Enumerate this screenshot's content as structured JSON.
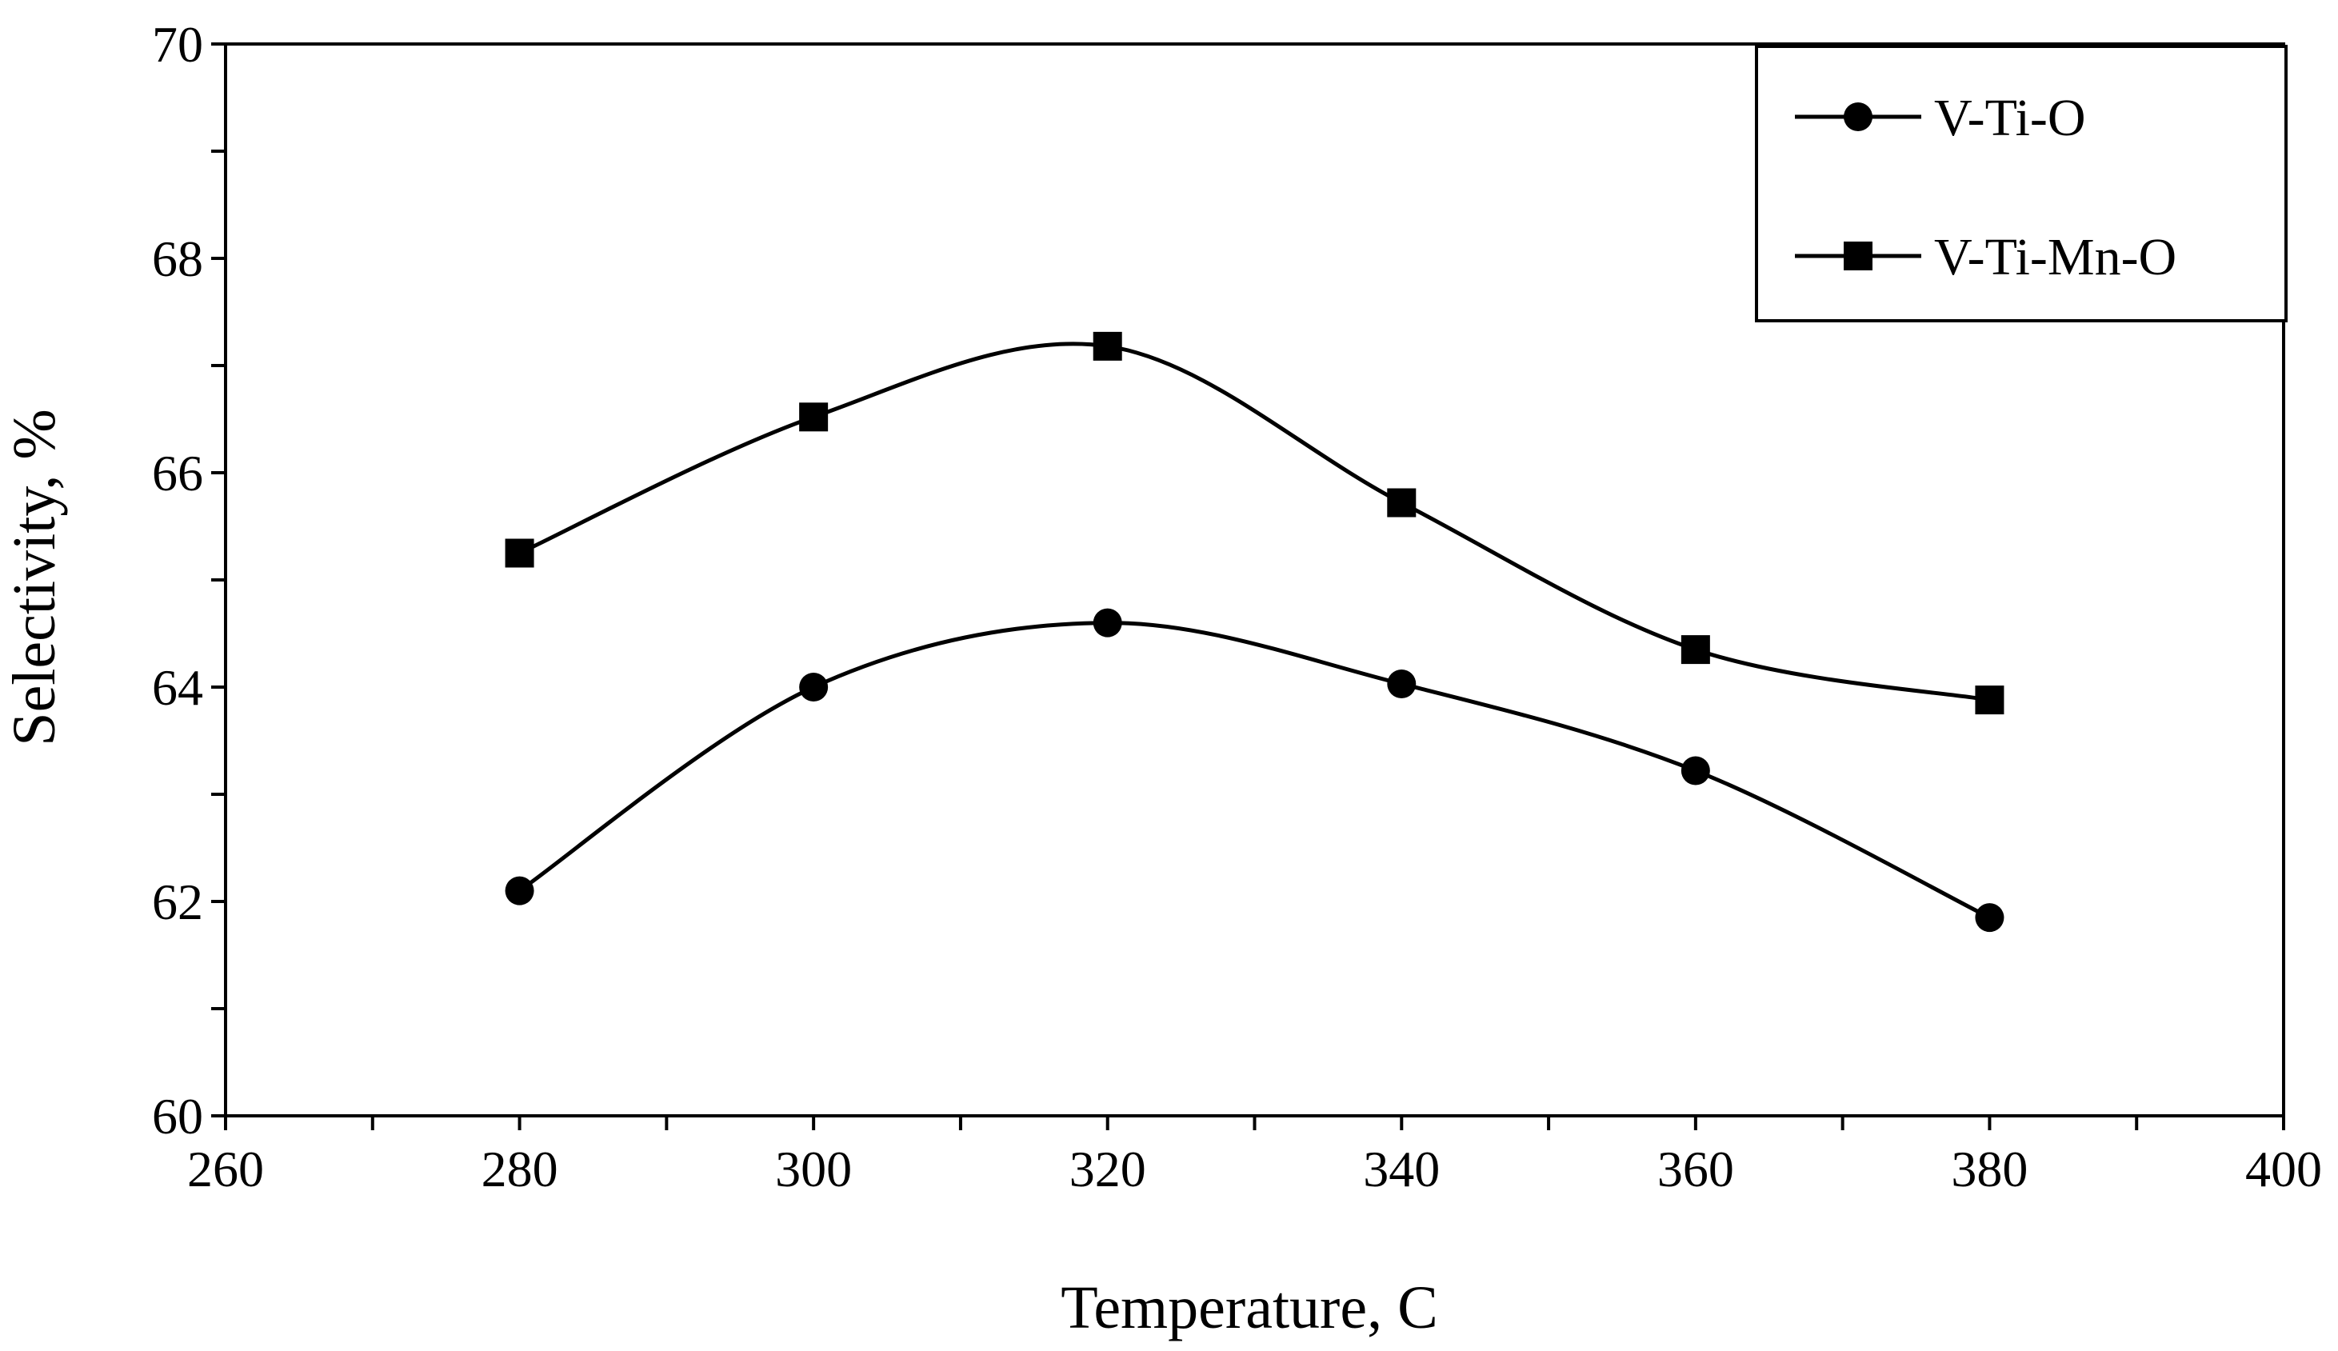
{
  "chart_data": {
    "type": "line",
    "title": "",
    "xlabel": "Temperature, C",
    "ylabel": "Selectivity, %",
    "xlim": [
      260,
      400
    ],
    "ylim": [
      60,
      70
    ],
    "x_major_ticks": [
      260,
      280,
      300,
      320,
      340,
      360,
      380,
      400
    ],
    "x_minor_step": 10,
    "y_major_ticks": [
      60,
      62,
      64,
      66,
      68,
      70
    ],
    "y_minor_step": 1,
    "x_tick_labels": [
      "260",
      "280",
      "300",
      "320",
      "340",
      "360",
      "380",
      "400"
    ],
    "y_tick_labels": [
      "60",
      "62",
      "64",
      "66",
      "68",
      "70"
    ],
    "grid": false,
    "legend_position": "top-right",
    "smooth": true,
    "series": [
      {
        "name": "V-Ti-O",
        "marker": "circle",
        "color": "#000000",
        "x": [
          280,
          300,
          320,
          340,
          360,
          380
        ],
        "y": [
          62.1,
          64.0,
          64.6,
          64.03,
          63.22,
          61.85
        ]
      },
      {
        "name": "V-Ti-Mn-O",
        "marker": "square",
        "color": "#000000",
        "x": [
          280,
          300,
          320,
          340,
          360,
          380
        ],
        "y": [
          65.25,
          66.52,
          67.18,
          65.72,
          64.35,
          63.88
        ]
      }
    ]
  }
}
